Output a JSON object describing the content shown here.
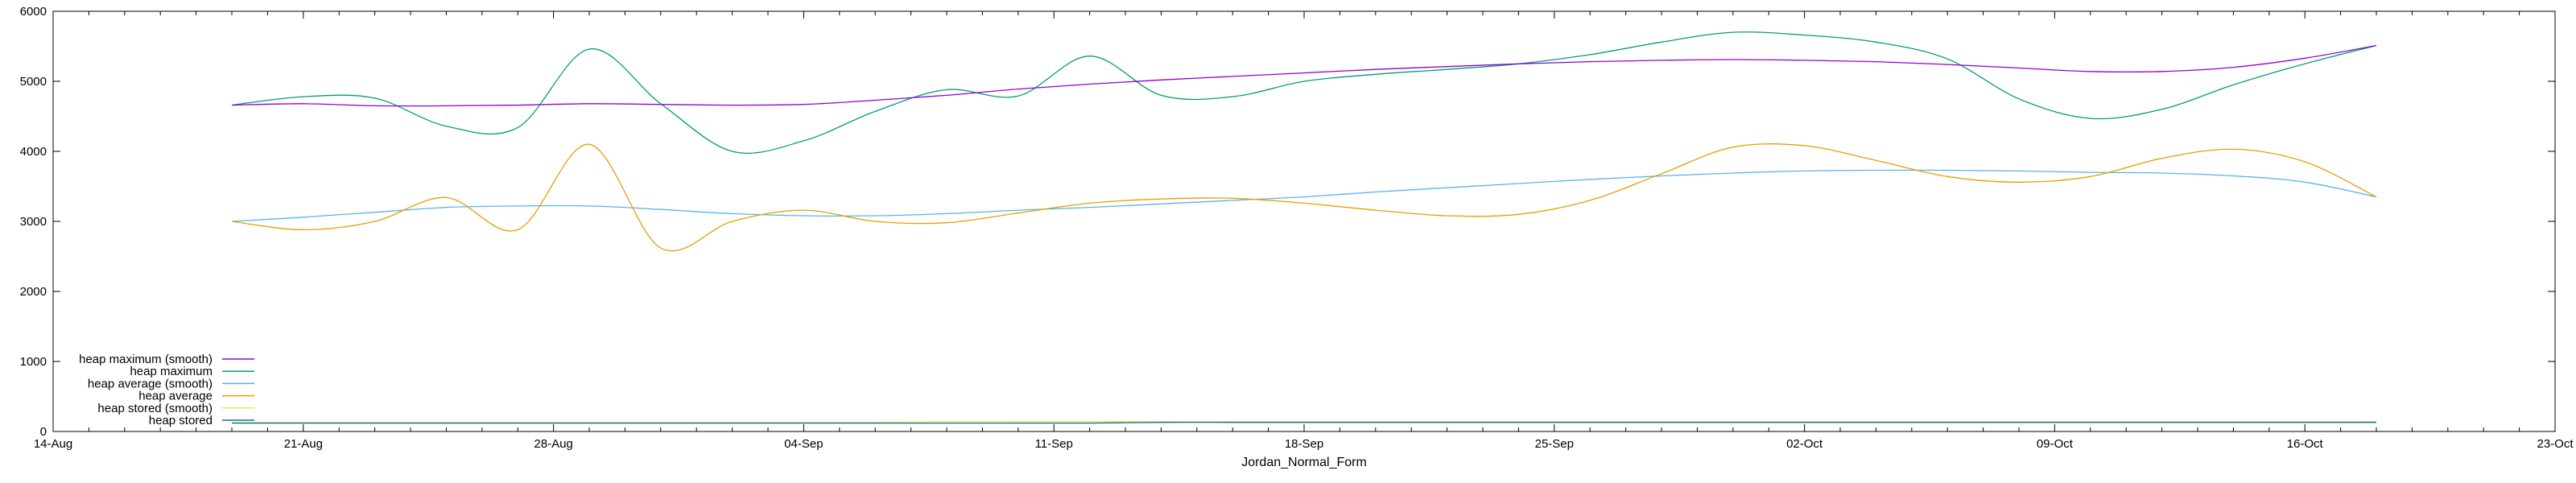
{
  "chart_data": {
    "type": "line",
    "title": "",
    "xlabel": "Jordan_Normal_Form",
    "ylabel": "",
    "xlim": [
      "2017-08-14",
      "2017-10-23"
    ],
    "ylim": [
      0,
      6000
    ],
    "x_tick_labels": [
      "14-Aug",
      "21-Aug",
      "28-Aug",
      "04-Sep",
      "11-Sep",
      "18-Sep",
      "25-Sep",
      "02-Oct",
      "09-Oct",
      "16-Oct",
      "23-Oct"
    ],
    "y_tick_labels": [
      "0",
      "1000",
      "2000",
      "3000",
      "4000",
      "5000",
      "6000"
    ],
    "grid": false,
    "legend_position": "bottom-left",
    "x": [
      "2017-08-19",
      "2017-08-21",
      "2017-08-23",
      "2017-08-25",
      "2017-08-27",
      "2017-08-29",
      "2017-08-31",
      "2017-09-02",
      "2017-09-04",
      "2017-09-06",
      "2017-09-08",
      "2017-09-10",
      "2017-09-12",
      "2017-09-14",
      "2017-09-16",
      "2017-09-18",
      "2017-09-20",
      "2017-09-22",
      "2017-09-24",
      "2017-09-26",
      "2017-09-28",
      "2017-09-30",
      "2017-10-02",
      "2017-10-04",
      "2017-10-06",
      "2017-10-08",
      "2017-10-10",
      "2017-10-12",
      "2017-10-14",
      "2017-10-16",
      "2017-10-18"
    ],
    "series": [
      {
        "name": "heap maximum (smooth)",
        "color": "#9400d3",
        "values": [
          4660,
          4680,
          4650,
          4650,
          4660,
          4680,
          4670,
          4660,
          4670,
          4730,
          4800,
          4890,
          4960,
          5020,
          5070,
          5120,
          5170,
          5210,
          5250,
          5280,
          5300,
          5310,
          5300,
          5280,
          5240,
          5190,
          5140,
          5140,
          5200,
          5330,
          5510
        ]
      },
      {
        "name": "heap maximum",
        "color": "#009e73",
        "values": [
          4660,
          4780,
          4760,
          4360,
          4340,
          5460,
          4680,
          4000,
          4150,
          4570,
          4880,
          4790,
          5360,
          4800,
          4780,
          5000,
          5100,
          5170,
          5250,
          5380,
          5560,
          5700,
          5660,
          5560,
          5320,
          4750,
          4470,
          4600,
          4950,
          5250,
          5510
        ]
      },
      {
        "name": "heap average (smooth)",
        "color": "#56b4e9",
        "values": [
          3000,
          3060,
          3130,
          3200,
          3220,
          3220,
          3170,
          3110,
          3080,
          3080,
          3110,
          3160,
          3200,
          3250,
          3300,
          3350,
          3420,
          3480,
          3540,
          3600,
          3650,
          3690,
          3720,
          3730,
          3730,
          3720,
          3700,
          3690,
          3650,
          3560,
          3350
        ]
      },
      {
        "name": "heap average",
        "color": "#e69f00",
        "values": [
          3000,
          2880,
          3000,
          3340,
          2880,
          4100,
          2620,
          3000,
          3160,
          3000,
          2980,
          3120,
          3260,
          3320,
          3330,
          3260,
          3160,
          3080,
          3100,
          3300,
          3680,
          4060,
          4080,
          3870,
          3640,
          3560,
          3640,
          3900,
          4030,
          3850,
          3350
        ]
      },
      {
        "name": "heap stored (smooth)",
        "color": "#f0e442",
        "values": [
          130,
          130,
          130,
          130,
          130,
          130,
          130,
          130,
          130,
          130,
          140,
          140,
          140,
          140,
          140,
          140,
          140,
          140,
          140,
          140,
          140,
          140,
          140,
          140,
          140,
          140,
          140,
          140,
          140,
          140,
          140
        ]
      },
      {
        "name": "heap stored",
        "color": "#0072b2",
        "values": [
          120,
          120,
          120,
          120,
          120,
          120,
          120,
          120,
          120,
          120,
          120,
          120,
          120,
          130,
          130,
          130,
          130,
          130,
          130,
          130,
          130,
          130,
          130,
          130,
          130,
          130,
          130,
          130,
          130,
          130,
          130
        ]
      }
    ]
  }
}
